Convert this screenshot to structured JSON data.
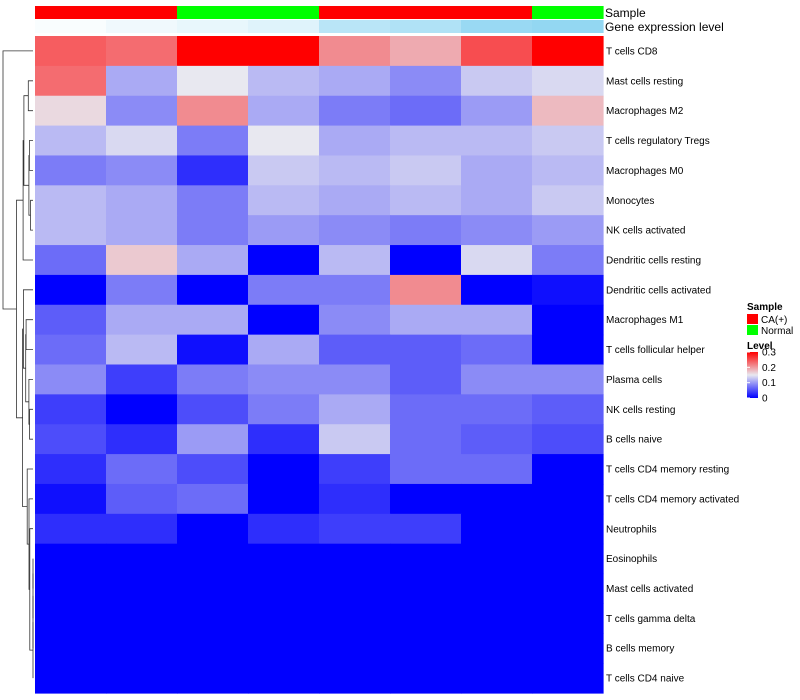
{
  "chart_data": {
    "type": "heatmap",
    "title": "",
    "annotation_rows": [
      {
        "name": "Sample",
        "values": [
          "CA(+)",
          "CA(+)",
          "Normal",
          "Normal",
          "CA(+)",
          "CA(+)",
          "CA(+)",
          "Normal"
        ]
      },
      {
        "name": "Gene expression level",
        "values": [
          0.05,
          0.12,
          0.18,
          0.25,
          0.55,
          0.62,
          0.8,
          0.85
        ]
      }
    ],
    "rows": [
      "T cells CD8",
      "Mast cells resting",
      "Macrophages M2",
      "T cells regulatory  Tregs",
      "Macrophages M0",
      "Monocytes",
      "NK cells activated",
      "Dendritic cells resting",
      "Dendritic cells activated",
      "Macrophages M1",
      "T cells follicular helper",
      "Plasma cells",
      "NK cells resting",
      "B cells naive",
      "T cells CD4 memory resting",
      "T cells CD4 memory activated",
      "Neutrophils",
      "Eosinophils",
      "Mast cells activated",
      "T cells gamma delta",
      "B cells memory",
      "T cells CD4 naive"
    ],
    "columns": 8,
    "values": [
      [
        0.24,
        0.23,
        0.3,
        0.3,
        0.21,
        0.19,
        0.25,
        0.3
      ],
      [
        0.23,
        0.11,
        0.15,
        0.12,
        0.11,
        0.09,
        0.13,
        0.14
      ],
      [
        0.16,
        0.09,
        0.21,
        0.11,
        0.08,
        0.07,
        0.1,
        0.18
      ],
      [
        0.12,
        0.14,
        0.08,
        0.15,
        0.11,
        0.12,
        0.12,
        0.13
      ],
      [
        0.08,
        0.09,
        0.03,
        0.13,
        0.12,
        0.13,
        0.11,
        0.12
      ],
      [
        0.12,
        0.11,
        0.08,
        0.12,
        0.11,
        0.12,
        0.11,
        0.13
      ],
      [
        0.12,
        0.11,
        0.08,
        0.1,
        0.09,
        0.08,
        0.09,
        0.1
      ],
      [
        0.07,
        0.17,
        0.11,
        0.0,
        0.12,
        0.0,
        0.14,
        0.08
      ],
      [
        0.0,
        0.08,
        0.0,
        0.08,
        0.08,
        0.21,
        0.0,
        0.01
      ],
      [
        0.06,
        0.11,
        0.11,
        0.0,
        0.09,
        0.11,
        0.11,
        0.0
      ],
      [
        0.07,
        0.12,
        0.01,
        0.11,
        0.06,
        0.06,
        0.07,
        0.0
      ],
      [
        0.09,
        0.04,
        0.08,
        0.09,
        0.09,
        0.06,
        0.09,
        0.09
      ],
      [
        0.04,
        0.0,
        0.05,
        0.08,
        0.11,
        0.07,
        0.07,
        0.06
      ],
      [
        0.05,
        0.03,
        0.1,
        0.03,
        0.13,
        0.07,
        0.06,
        0.05
      ],
      [
        0.03,
        0.07,
        0.05,
        0.0,
        0.04,
        0.07,
        0.07,
        0.0
      ],
      [
        0.01,
        0.06,
        0.07,
        0.0,
        0.03,
        0.0,
        0.0,
        0.0
      ],
      [
        0.03,
        0.03,
        0.0,
        0.03,
        0.04,
        0.04,
        0.0,
        0.0
      ],
      [
        0.0,
        0.0,
        0.0,
        0.0,
        0.0,
        0.0,
        0.0,
        0.0
      ],
      [
        0.0,
        0.0,
        0.0,
        0.0,
        0.0,
        0.0,
        0.0,
        0.0
      ],
      [
        0.0,
        0.0,
        0.0,
        0.0,
        0.0,
        0.0,
        0.0,
        0.0
      ],
      [
        0.0,
        0.0,
        0.0,
        0.0,
        0.0,
        0.0,
        0.0,
        0.0
      ],
      [
        0.0,
        0.0,
        0.0,
        0.0,
        0.0,
        0.0,
        0.0,
        0.0
      ]
    ],
    "color_scale": {
      "low": "#0000FF",
      "mid": "#E8E8F0",
      "high": "#FF0000",
      "range": [
        0,
        0.3
      ]
    },
    "legend": {
      "sample_title": "Sample",
      "sample_items": [
        {
          "label": "CA(+)",
          "color": "#FF0000"
        },
        {
          "label": "Normal",
          "color": "#00FF00"
        }
      ],
      "level_title": "Level",
      "level_ticks": [
        "0.3",
        "0.2",
        "0.1",
        "0"
      ],
      "level_tick_values": [
        0.3,
        0.2,
        0.1,
        0
      ],
      "placement": "right"
    },
    "dendrogram": "rows"
  }
}
